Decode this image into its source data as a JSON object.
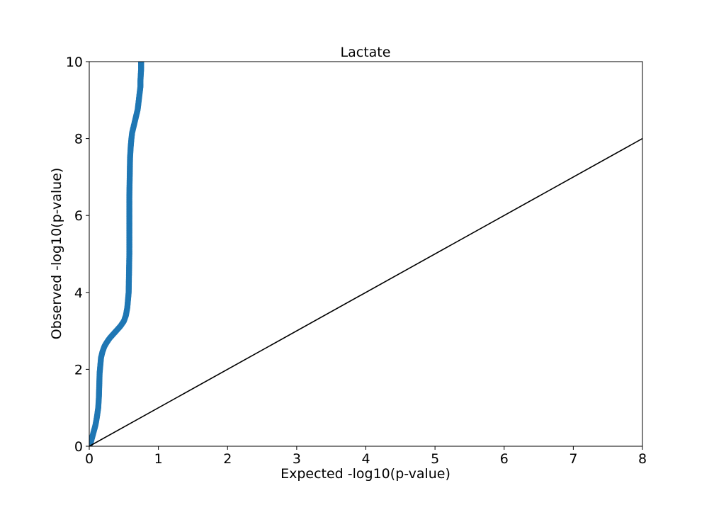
{
  "chart_data": {
    "type": "scatter",
    "title": "Lactate",
    "xlabel": "Expected -log10(p-value)",
    "ylabel": "Observed -log10(p-value)",
    "xlim": [
      0,
      8
    ],
    "ylim": [
      0,
      10
    ],
    "xticks": [
      "0",
      "1",
      "2",
      "3",
      "4",
      "5",
      "6",
      "7",
      "8"
    ],
    "yticks": [
      "0",
      "2",
      "4",
      "6",
      "8",
      "10"
    ],
    "grid": false,
    "point_color": "#1f77b4",
    "reference_line": {
      "color": "#000000",
      "x": [
        0,
        8
      ],
      "y": [
        0,
        8
      ]
    },
    "series": [
      {
        "x": [
          0.0,
          0.03,
          0.06,
          0.09,
          0.11,
          0.13,
          0.14,
          0.145,
          0.15,
          0.16,
          0.17,
          0.19,
          0.22,
          0.26,
          0.3,
          0.35,
          0.4,
          0.45,
          0.5,
          0.53,
          0.55,
          0.56,
          0.57,
          0.575,
          0.58,
          0.58,
          0.58,
          0.58,
          0.585,
          0.59,
          0.6,
          0.61,
          0.62,
          0.64,
          0.66,
          0.68,
          0.7,
          0.71,
          0.72,
          0.73,
          0.74,
          0.74,
          0.745,
          0.75,
          0.75
        ],
        "y": [
          0.0,
          0.15,
          0.35,
          0.55,
          0.75,
          1.0,
          1.3,
          1.6,
          1.9,
          2.1,
          2.3,
          2.45,
          2.6,
          2.72,
          2.82,
          2.92,
          3.02,
          3.12,
          3.25,
          3.4,
          3.6,
          3.8,
          4.0,
          4.5,
          5.0,
          5.5,
          6.0,
          6.5,
          7.0,
          7.5,
          7.8,
          8.0,
          8.15,
          8.3,
          8.45,
          8.6,
          8.75,
          8.9,
          9.05,
          9.2,
          9.35,
          9.5,
          9.65,
          9.8,
          10.0
        ]
      }
    ]
  }
}
